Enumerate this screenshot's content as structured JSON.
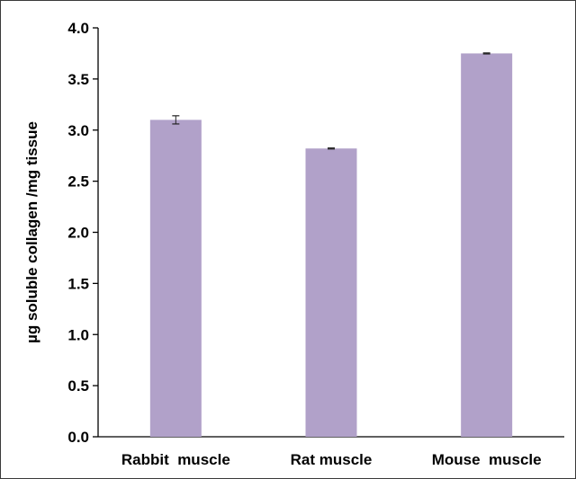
{
  "chart_data": {
    "type": "bar",
    "title": "",
    "xlabel": "",
    "ylabel": "µg soluble collagen /mg tissue",
    "categories": [
      "Rabbit  muscle",
      "Rat muscle",
      "Mouse  muscle"
    ],
    "values": [
      3.1,
      2.82,
      3.75
    ],
    "errors": [
      0.04,
      0.005,
      0.005
    ],
    "ylim": [
      0,
      4.0
    ],
    "yticks": [
      "0.0",
      "0.5",
      "1.0",
      "1.5",
      "2.0",
      "2.5",
      "3.0",
      "3.5",
      "4.0"
    ],
    "grid": false,
    "bar_color": "#b1a1c9"
  }
}
